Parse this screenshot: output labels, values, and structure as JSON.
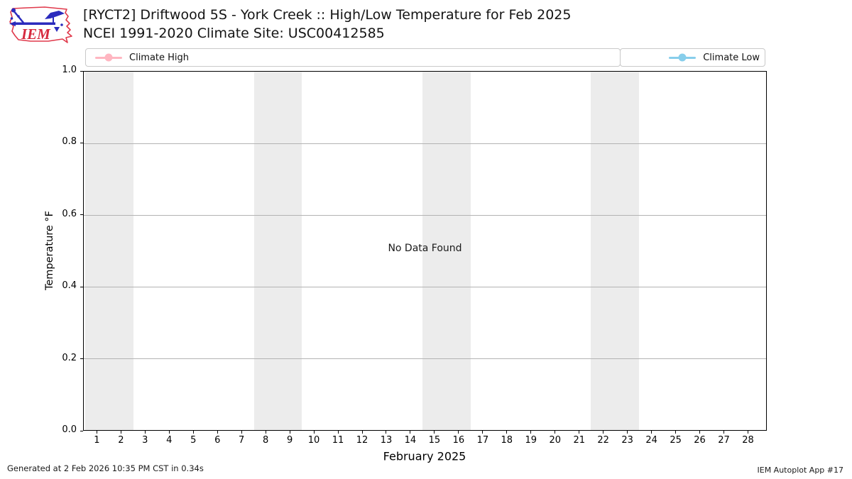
{
  "header": {
    "title_line1": "[RYCT2] Driftwood 5S - York Creek :: High/Low Temperature for Feb 2025",
    "title_line2": "NCEI 1991-2020 Climate Site: USC00412585",
    "logo_text": "IEM"
  },
  "legend": {
    "entries": [
      {
        "label": "Climate High",
        "color": "#ffb6c1"
      },
      {
        "label": "Climate Low",
        "color": "#87ceeb"
      }
    ]
  },
  "chart_data": {
    "type": "line",
    "title": "[RYCT2] Driftwood 5S - York Creek :: High/Low Temperature for Feb 2025",
    "subtitle": "NCEI 1991-2020 Climate Site: USC00412585",
    "annotation": "No Data Found",
    "xlabel": "February 2025",
    "ylabel": "Temperature °F",
    "xlim": [
      0.43,
      28.78
    ],
    "ylim": [
      0.0,
      1.0
    ],
    "xticks": [
      1,
      2,
      3,
      4,
      5,
      6,
      7,
      8,
      9,
      10,
      11,
      12,
      13,
      14,
      15,
      16,
      17,
      18,
      19,
      20,
      21,
      22,
      23,
      24,
      25,
      26,
      27,
      28
    ],
    "yticks": [
      0.0,
      0.2,
      0.4,
      0.6,
      0.8,
      1.0
    ],
    "ytick_labels": [
      "0.0",
      "0.2",
      "0.4",
      "0.6",
      "0.8",
      "1.0"
    ],
    "grid": true,
    "legend_position": "top",
    "weekend_bands": [
      [
        0.5,
        2.5
      ],
      [
        7.5,
        9.5
      ],
      [
        14.5,
        16.5
      ],
      [
        21.5,
        23.5
      ]
    ],
    "band_color": "#ececec",
    "grid_color": "#b3b3b3",
    "series": [
      {
        "name": "Climate High",
        "color": "#ffb6c1",
        "x": [],
        "values": []
      },
      {
        "name": "Climate Low",
        "color": "#87ceeb",
        "x": [],
        "values": []
      }
    ]
  },
  "footer": {
    "left": "Generated at 2 Feb 2026 10:35 PM CST in 0.34s",
    "right": "IEM Autoplot App #17"
  }
}
